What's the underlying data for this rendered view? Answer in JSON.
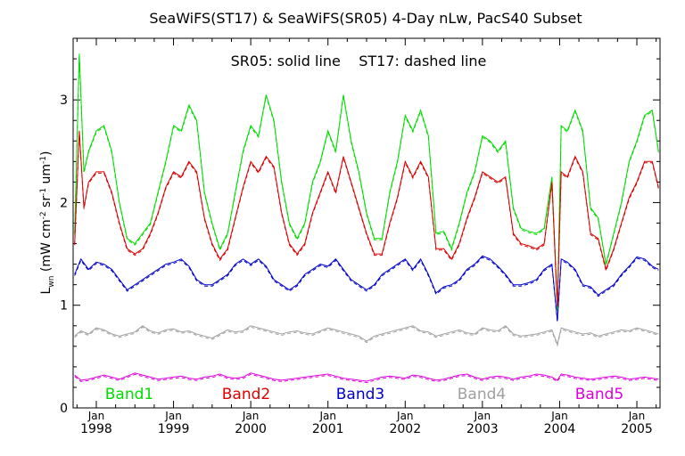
{
  "chart_data": {
    "type": "line",
    "title": "SeaWiFS(ST17) & SeaWiFS(SR05) 4-Day nLw, PacS40 Subset",
    "subtitle": "SR05: solid line    ST17: dashed line",
    "ylabel": "L",
    "ylabel_sub": "wn",
    "ylabel_units": " (mW cm",
    "ylabel_units2": " sr",
    "ylabel_units3": " um",
    "ylabel_units4": ")",
    "ylabel_sup_a": "-2",
    "ylabel_sup_b": "-1",
    "ylabel_sup_c": "-1",
    "xlim": [
      1997.7,
      2005.3
    ],
    "ylim": [
      0,
      3.6
    ],
    "y_ticks": [
      0,
      1,
      2,
      3
    ],
    "y_tick_labels": [
      "0",
      "1",
      "2",
      "3"
    ],
    "x_major_ticks": [
      1998.0,
      1999.0,
      2000.0,
      2001.0,
      2002.0,
      2003.0,
      2004.0,
      2005.0
    ],
    "x_month_label": "Jan",
    "x_year_labels": [
      "1998",
      "1999",
      "2000",
      "2001",
      "2002",
      "2003",
      "2004",
      "2005"
    ],
    "legend_placement": "bottom inside plot",
    "series": [
      {
        "name": "Band1",
        "color": "#00dd00",
        "x": [
          1997.72,
          1997.78,
          1997.84,
          1997.9,
          1998.0,
          1998.1,
          1998.2,
          1998.3,
          1998.4,
          1998.5,
          1998.6,
          1998.7,
          1998.8,
          1998.9,
          1999.0,
          1999.1,
          1999.2,
          1999.3,
          1999.4,
          1999.5,
          1999.6,
          1999.7,
          1999.8,
          1999.9,
          2000.0,
          2000.1,
          2000.2,
          2000.3,
          2000.4,
          2000.5,
          2000.6,
          2000.7,
          2000.8,
          2000.9,
          2001.0,
          2001.1,
          2001.2,
          2001.3,
          2001.4,
          2001.5,
          2001.6,
          2001.7,
          2001.8,
          2001.9,
          2002.0,
          2002.1,
          2002.2,
          2002.3,
          2002.4,
          2002.5,
          2002.6,
          2002.7,
          2002.8,
          2002.9,
          2003.0,
          2003.1,
          2003.2,
          2003.3,
          2003.4,
          2003.5,
          2003.6,
          2003.7,
          2003.8,
          2003.9,
          2003.97,
          2004.02,
          2004.1,
          2004.2,
          2004.3,
          2004.4,
          2004.5,
          2004.6,
          2004.7,
          2004.8,
          2004.9,
          2005.0,
          2005.1,
          2005.2,
          2005.28
        ],
        "values": [
          1.7,
          3.45,
          2.3,
          2.5,
          2.7,
          2.75,
          2.5,
          2.0,
          1.65,
          1.6,
          1.7,
          1.8,
          2.1,
          2.4,
          2.75,
          2.7,
          2.95,
          2.8,
          2.1,
          1.8,
          1.55,
          1.7,
          2.1,
          2.5,
          2.75,
          2.65,
          3.05,
          2.8,
          2.2,
          1.8,
          1.65,
          1.8,
          2.2,
          2.4,
          2.7,
          2.5,
          3.05,
          2.6,
          2.3,
          1.9,
          1.65,
          1.65,
          2.1,
          2.4,
          2.85,
          2.7,
          2.9,
          2.65,
          1.7,
          1.72,
          1.55,
          1.8,
          2.1,
          2.3,
          2.65,
          2.6,
          2.5,
          2.6,
          1.95,
          1.75,
          1.72,
          1.7,
          1.75,
          2.25,
          0.95,
          2.75,
          2.7,
          2.9,
          2.7,
          1.95,
          1.85,
          1.4,
          1.7,
          2.0,
          2.4,
          2.6,
          2.85,
          2.9,
          2.5
        ]
      },
      {
        "name": "Band2",
        "color": "#dd0000",
        "x": [
          1997.72,
          1997.78,
          1997.84,
          1997.9,
          1998.0,
          1998.1,
          1998.2,
          1998.3,
          1998.4,
          1998.5,
          1998.6,
          1998.7,
          1998.8,
          1998.9,
          1999.0,
          1999.1,
          1999.2,
          1999.3,
          1999.4,
          1999.5,
          1999.6,
          1999.7,
          1999.8,
          1999.9,
          2000.0,
          2000.1,
          2000.2,
          2000.3,
          2000.4,
          2000.5,
          2000.6,
          2000.7,
          2000.8,
          2000.9,
          2001.0,
          2001.1,
          2001.2,
          2001.3,
          2001.4,
          2001.5,
          2001.6,
          2001.7,
          2001.8,
          2001.9,
          2002.0,
          2002.1,
          2002.2,
          2002.3,
          2002.4,
          2002.5,
          2002.6,
          2002.7,
          2002.8,
          2002.9,
          2003.0,
          2003.1,
          2003.2,
          2003.3,
          2003.4,
          2003.5,
          2003.6,
          2003.7,
          2003.8,
          2003.9,
          2003.97,
          2004.02,
          2004.1,
          2004.2,
          2004.3,
          2004.4,
          2004.5,
          2004.6,
          2004.7,
          2004.8,
          2004.9,
          2005.0,
          2005.1,
          2005.2,
          2005.28
        ],
        "values": [
          1.6,
          2.7,
          1.95,
          2.2,
          2.3,
          2.3,
          2.1,
          1.8,
          1.55,
          1.5,
          1.55,
          1.7,
          1.9,
          2.15,
          2.3,
          2.25,
          2.4,
          2.3,
          1.85,
          1.6,
          1.45,
          1.55,
          1.85,
          2.15,
          2.4,
          2.3,
          2.45,
          2.35,
          1.9,
          1.6,
          1.5,
          1.6,
          1.9,
          2.1,
          2.3,
          2.1,
          2.45,
          2.2,
          1.95,
          1.7,
          1.5,
          1.5,
          1.8,
          2.05,
          2.4,
          2.25,
          2.4,
          2.25,
          1.55,
          1.55,
          1.45,
          1.6,
          1.85,
          2.05,
          2.3,
          2.25,
          2.2,
          2.25,
          1.7,
          1.6,
          1.58,
          1.55,
          1.6,
          2.2,
          1.0,
          2.3,
          2.25,
          2.45,
          2.3,
          1.7,
          1.65,
          1.35,
          1.55,
          1.8,
          2.05,
          2.2,
          2.4,
          2.4,
          2.15
        ]
      },
      {
        "name": "Band3",
        "color": "#0000cc",
        "x": [
          1997.72,
          1997.8,
          1997.9,
          1998.0,
          1998.1,
          1998.2,
          1998.3,
          1998.4,
          1998.5,
          1998.6,
          1998.7,
          1998.8,
          1998.9,
          1999.0,
          1999.1,
          1999.2,
          1999.3,
          1999.4,
          1999.5,
          1999.6,
          1999.7,
          1999.8,
          1999.9,
          2000.0,
          2000.1,
          2000.2,
          2000.3,
          2000.4,
          2000.5,
          2000.6,
          2000.7,
          2000.8,
          2000.9,
          2001.0,
          2001.1,
          2001.2,
          2001.3,
          2001.4,
          2001.5,
          2001.6,
          2001.7,
          2001.8,
          2001.9,
          2002.0,
          2002.1,
          2002.2,
          2002.3,
          2002.4,
          2002.5,
          2002.6,
          2002.7,
          2002.8,
          2002.9,
          2003.0,
          2003.1,
          2003.2,
          2003.3,
          2003.4,
          2003.5,
          2003.6,
          2003.7,
          2003.8,
          2003.9,
          2003.97,
          2004.02,
          2004.1,
          2004.2,
          2004.3,
          2004.4,
          2004.5,
          2004.6,
          2004.7,
          2004.8,
          2004.9,
          2005.0,
          2005.1,
          2005.2,
          2005.28
        ],
        "values": [
          1.3,
          1.45,
          1.35,
          1.42,
          1.4,
          1.35,
          1.25,
          1.15,
          1.2,
          1.25,
          1.3,
          1.35,
          1.4,
          1.42,
          1.45,
          1.38,
          1.25,
          1.2,
          1.2,
          1.25,
          1.3,
          1.4,
          1.45,
          1.4,
          1.45,
          1.38,
          1.25,
          1.2,
          1.15,
          1.2,
          1.3,
          1.35,
          1.4,
          1.38,
          1.45,
          1.35,
          1.25,
          1.2,
          1.15,
          1.2,
          1.3,
          1.35,
          1.4,
          1.45,
          1.35,
          1.45,
          1.3,
          1.12,
          1.18,
          1.2,
          1.25,
          1.35,
          1.4,
          1.48,
          1.45,
          1.38,
          1.3,
          1.2,
          1.2,
          1.22,
          1.25,
          1.35,
          1.4,
          0.85,
          1.45,
          1.42,
          1.35,
          1.2,
          1.18,
          1.1,
          1.15,
          1.2,
          1.3,
          1.38,
          1.47,
          1.45,
          1.38,
          1.35
        ]
      },
      {
        "name": "Band4",
        "color": "#a0a0a0",
        "x": [
          1997.72,
          1997.8,
          1997.9,
          1998.0,
          1998.1,
          1998.2,
          1998.3,
          1998.4,
          1998.5,
          1998.6,
          1998.7,
          1998.8,
          1998.9,
          1999.0,
          1999.1,
          1999.2,
          1999.3,
          1999.4,
          1999.5,
          1999.6,
          1999.7,
          1999.8,
          1999.9,
          2000.0,
          2000.1,
          2000.2,
          2000.3,
          2000.4,
          2000.5,
          2000.6,
          2000.7,
          2000.8,
          2000.9,
          2001.0,
          2001.1,
          2001.2,
          2001.3,
          2001.4,
          2001.5,
          2001.6,
          2001.7,
          2001.8,
          2001.9,
          2002.0,
          2002.1,
          2002.2,
          2002.3,
          2002.4,
          2002.5,
          2002.6,
          2002.7,
          2002.8,
          2002.9,
          2003.0,
          2003.1,
          2003.2,
          2003.3,
          2003.4,
          2003.5,
          2003.6,
          2003.7,
          2003.8,
          2003.9,
          2003.97,
          2004.02,
          2004.1,
          2004.2,
          2004.3,
          2004.4,
          2004.5,
          2004.6,
          2004.7,
          2004.8,
          2004.9,
          2005.0,
          2005.1,
          2005.2,
          2005.28
        ],
        "values": [
          0.7,
          0.75,
          0.72,
          0.78,
          0.76,
          0.72,
          0.7,
          0.72,
          0.74,
          0.8,
          0.75,
          0.73,
          0.76,
          0.77,
          0.74,
          0.75,
          0.72,
          0.7,
          0.68,
          0.72,
          0.76,
          0.74,
          0.75,
          0.8,
          0.78,
          0.76,
          0.74,
          0.72,
          0.74,
          0.75,
          0.73,
          0.72,
          0.75,
          0.78,
          0.76,
          0.74,
          0.72,
          0.7,
          0.65,
          0.7,
          0.72,
          0.74,
          0.76,
          0.78,
          0.8,
          0.75,
          0.74,
          0.7,
          0.72,
          0.74,
          0.76,
          0.73,
          0.72,
          0.78,
          0.76,
          0.75,
          0.8,
          0.72,
          0.7,
          0.71,
          0.72,
          0.74,
          0.76,
          0.62,
          0.78,
          0.76,
          0.74,
          0.72,
          0.73,
          0.7,
          0.72,
          0.74,
          0.76,
          0.75,
          0.78,
          0.76,
          0.74,
          0.72
        ]
      },
      {
        "name": "Band5",
        "color": "#dd00dd",
        "x": [
          1997.72,
          1997.8,
          1997.9,
          1998.0,
          1998.1,
          1998.2,
          1998.3,
          1998.4,
          1998.5,
          1998.6,
          1998.7,
          1998.8,
          1998.9,
          1999.0,
          1999.1,
          1999.2,
          1999.3,
          1999.4,
          1999.5,
          1999.6,
          1999.7,
          1999.8,
          1999.9,
          2000.0,
          2000.1,
          2000.2,
          2000.3,
          2000.4,
          2000.5,
          2000.6,
          2000.7,
          2000.8,
          2000.9,
          2001.0,
          2001.1,
          2001.2,
          2001.3,
          2001.4,
          2001.5,
          2001.6,
          2001.7,
          2001.8,
          2001.9,
          2002.0,
          2002.1,
          2002.2,
          2002.3,
          2002.4,
          2002.5,
          2002.6,
          2002.7,
          2002.8,
          2002.9,
          2003.0,
          2003.1,
          2003.2,
          2003.3,
          2003.4,
          2003.5,
          2003.6,
          2003.7,
          2003.8,
          2003.9,
          2003.97,
          2004.02,
          2004.1,
          2004.2,
          2004.3,
          2004.4,
          2004.5,
          2004.6,
          2004.7,
          2004.8,
          2004.9,
          2005.0,
          2005.1,
          2005.2,
          2005.28
        ],
        "values": [
          0.32,
          0.27,
          0.28,
          0.3,
          0.32,
          0.3,
          0.28,
          0.31,
          0.34,
          0.32,
          0.3,
          0.28,
          0.29,
          0.3,
          0.31,
          0.29,
          0.28,
          0.3,
          0.31,
          0.33,
          0.3,
          0.29,
          0.3,
          0.34,
          0.32,
          0.3,
          0.28,
          0.27,
          0.28,
          0.29,
          0.3,
          0.31,
          0.32,
          0.33,
          0.31,
          0.29,
          0.28,
          0.27,
          0.26,
          0.28,
          0.3,
          0.31,
          0.3,
          0.29,
          0.32,
          0.31,
          0.29,
          0.27,
          0.28,
          0.3,
          0.32,
          0.33,
          0.3,
          0.28,
          0.3,
          0.31,
          0.3,
          0.28,
          0.3,
          0.31,
          0.33,
          0.32,
          0.3,
          0.27,
          0.33,
          0.32,
          0.3,
          0.29,
          0.28,
          0.29,
          0.3,
          0.31,
          0.3,
          0.28,
          0.29,
          0.3,
          0.29,
          0.28
        ]
      }
    ]
  }
}
